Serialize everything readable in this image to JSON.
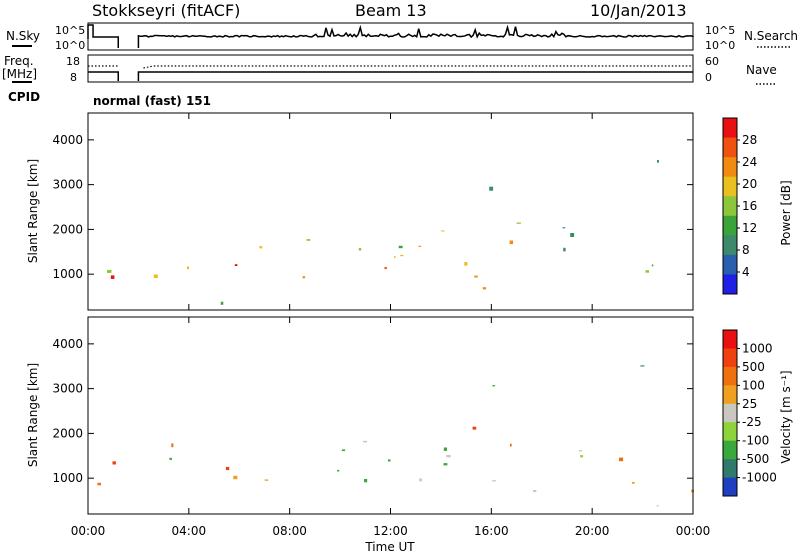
{
  "header": {
    "station": "Stokkseyri (fitACF)",
    "beam": "Beam 13",
    "date": "10/Jan/2013"
  },
  "top_panels": {
    "nsky_label": "N.Sky",
    "nsky_ticks": [
      "10^5",
      "10^0"
    ],
    "nsearch_label": "N.Search",
    "nsearch_ticks": [
      "10^5",
      "10^0"
    ],
    "freq_label_1": "Freq.",
    "freq_label_2": "[MHz]",
    "freq_ticks": [
      "18",
      "8"
    ],
    "nave_label": "Nave",
    "nave_ticks": [
      "60",
      "0"
    ],
    "cpid_label": "CPID",
    "cpid_text": "normal (fast) 151"
  },
  "chart_data": [
    {
      "type": "heatmap",
      "title": "",
      "ylabel": "Slant Range [km]",
      "xlabel": "",
      "ylim": [
        200,
        4600
      ],
      "yticks": [
        1000,
        2000,
        3000,
        4000
      ],
      "xlim_hours": [
        0,
        24
      ],
      "colorbar": {
        "label": "Power [dB]",
        "ticks": [
          "4",
          "8",
          "12",
          "16",
          "20",
          "24",
          "28"
        ],
        "range": [
          0,
          30
        ],
        "colors": [
          "#1f1fe6",
          "#2a5fb0",
          "#3d8a6a",
          "#3aa33a",
          "#8cc63a",
          "#e8c020",
          "#f08a10",
          "#f05010",
          "#e81010"
        ]
      },
      "data_gaps_hours": [
        [
          1.2,
          2.0
        ]
      ]
    },
    {
      "type": "heatmap",
      "title": "",
      "ylabel": "Slant Range [km]",
      "xlabel": "Time UT",
      "ylim": [
        200,
        4600
      ],
      "yticks": [
        1000,
        2000,
        3000,
        4000
      ],
      "xticks": [
        "00:00",
        "04:00",
        "08:00",
        "12:00",
        "16:00",
        "20:00",
        "00:00"
      ],
      "xlim_hours": [
        0,
        24
      ],
      "colorbar": {
        "label": "Velocity [m s⁻¹]",
        "ticks": [
          "1000",
          "500",
          "100",
          "25",
          "-25",
          "-100",
          "-500",
          "-1000"
        ],
        "colors": [
          "#1f3fc0",
          "#2f7a6a",
          "#3aa83a",
          "#8ed33a",
          "#c8c8c0",
          "#f0a020",
          "#f07010",
          "#f04010",
          "#e81010"
        ]
      },
      "data_gaps_hours": [
        [
          1.2,
          2.0
        ]
      ]
    }
  ]
}
